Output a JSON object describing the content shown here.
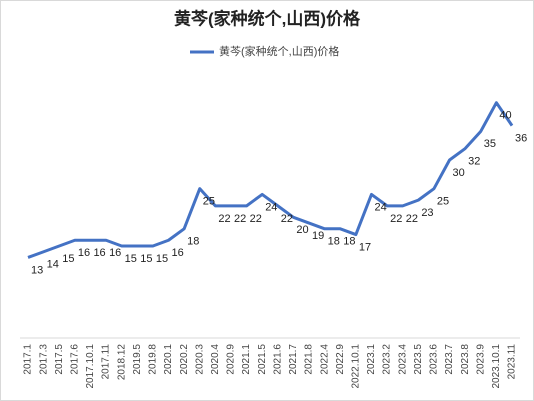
{
  "chart_data": {
    "type": "line",
    "title": "黄芩(家种统个,山西)价格",
    "categories": [
      "2017.1",
      "2017.3",
      "2017.5",
      "2017.6",
      "2017.10.1",
      "2017.11",
      "2018.12",
      "2019.5",
      "2019.8",
      "2020.1",
      "2020.2",
      "2020.3",
      "2020.4",
      "2020.9",
      "2021.1",
      "2021.5",
      "2021.6",
      "2021.7",
      "2021.8",
      "2022.4",
      "2022.9",
      "2022.10.1",
      "2023.1",
      "2023.2",
      "2023.4",
      "2023.5",
      "2023.6",
      "2023.7",
      "2023.8",
      "2023.9",
      "2023.10.1",
      "2023.11"
    ],
    "series": [
      {
        "name": "黄芩(家种统个,山西)价格",
        "color": "#4472c4",
        "values": [
          13,
          14,
          15,
          16,
          16,
          16,
          15,
          15,
          15,
          16,
          18,
          25,
          22,
          22,
          22,
          24,
          22,
          20,
          19,
          18,
          18,
          17,
          24,
          22,
          22,
          23,
          25,
          30,
          32,
          35,
          40,
          36
        ]
      }
    ],
    "ylim": [
      0,
      45
    ],
    "legend": "top"
  }
}
